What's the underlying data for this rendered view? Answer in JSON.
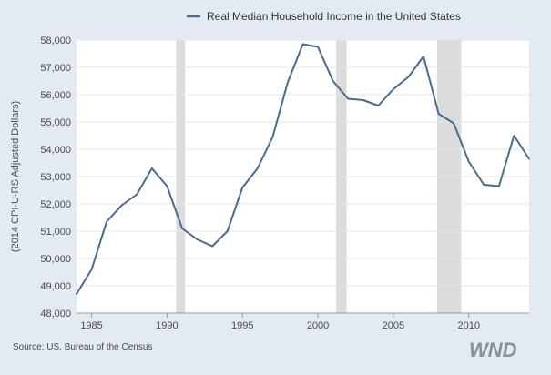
{
  "chart_data": {
    "type": "line",
    "title": "",
    "legend": [
      "Real Median Household Income in the United States"
    ],
    "legend_position": "top",
    "ylabel": "(2014 CPI-U-RS Adjusted Dollars)",
    "xlabel": "",
    "xlim": [
      1984,
      2014
    ],
    "ylim": [
      48000,
      58000
    ],
    "x_ticks": [
      1985,
      1990,
      1995,
      2000,
      2005,
      2010
    ],
    "y_ticks": [
      48000,
      49000,
      50000,
      51000,
      52000,
      53000,
      54000,
      55000,
      56000,
      57000,
      58000
    ],
    "y_tick_labels": [
      "48,000",
      "49,000",
      "50,000",
      "51,000",
      "52,000",
      "53,000",
      "54,000",
      "55,000",
      "56,000",
      "57,000",
      "58,000"
    ],
    "grid": "horizontal",
    "recession_bands": [
      [
        1990.6,
        1991.2
      ],
      [
        2001.2,
        2001.9
      ],
      [
        2007.9,
        2009.5
      ]
    ],
    "series": [
      {
        "name": "Real Median Household Income in the United States",
        "color": "#4a6a8f",
        "x": [
          1984,
          1985,
          1986,
          1987,
          1988,
          1989,
          1990,
          1991,
          1992,
          1993,
          1994,
          1995,
          1996,
          1997,
          1998,
          1999,
          2000,
          2001,
          2002,
          2003,
          2004,
          2005,
          2006,
          2007,
          2008,
          2009,
          2010,
          2011,
          2012,
          2013,
          2014
        ],
        "y": [
          48700,
          49600,
          51350,
          51950,
          52350,
          53300,
          52650,
          51100,
          50700,
          50450,
          51000,
          52600,
          53300,
          54450,
          56450,
          57850,
          57750,
          56500,
          55850,
          55800,
          55600,
          56200,
          56650,
          57400,
          55300,
          54950,
          53550,
          52700,
          52650,
          54500,
          53650
        ]
      }
    ]
  },
  "source": "Source: US. Bureau of the Census",
  "logo": "WND",
  "colors": {
    "background": "#e3eaf1",
    "plot_background": "#ffffff",
    "grid": "#e6e6e6",
    "recession": "#dcdcdc",
    "line": "#4a6a8f"
  }
}
